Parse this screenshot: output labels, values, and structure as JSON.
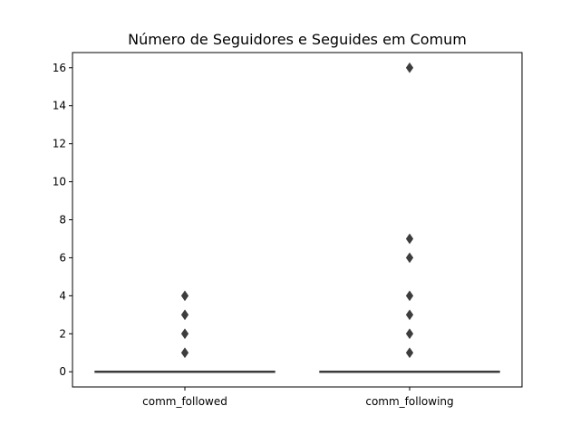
{
  "chart_data": {
    "type": "box",
    "title": "Número de Seguidores e Seguides em Comum",
    "xlabel": "",
    "ylabel": "",
    "categories": [
      "comm_followed",
      "comm_following"
    ],
    "ylim": [
      -0.8,
      16.8
    ],
    "yticks": [
      0,
      2,
      4,
      6,
      8,
      10,
      12,
      14,
      16
    ],
    "grid": false,
    "box_color": "#3b3b3b",
    "boxes": [
      {
        "category": "comm_followed",
        "q1": 0,
        "median": 0,
        "q3": 0,
        "whisker_low": 0,
        "whisker_high": 0,
        "outliers": [
          1,
          2,
          3,
          4
        ]
      },
      {
        "category": "comm_following",
        "q1": 0,
        "median": 0,
        "q3": 0,
        "whisker_low": 0,
        "whisker_high": 0,
        "outliers": [
          1,
          2,
          3,
          4,
          6,
          7,
          16
        ]
      }
    ]
  }
}
